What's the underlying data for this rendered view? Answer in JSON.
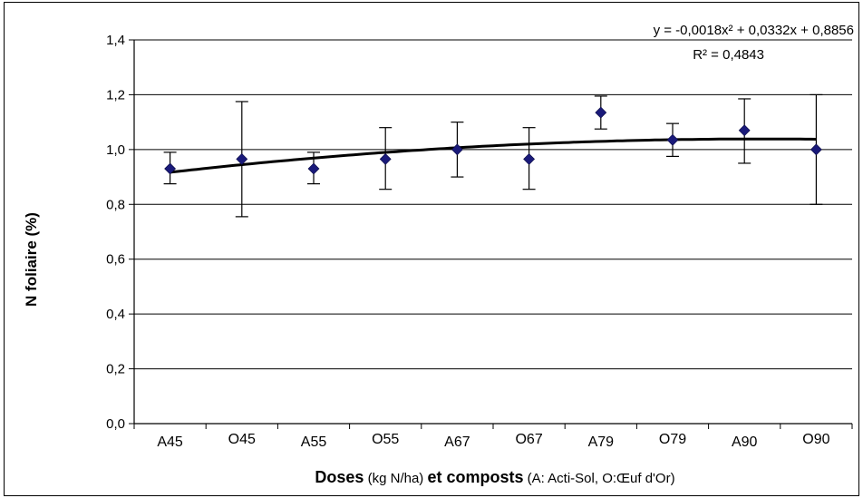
{
  "chart_data": {
    "type": "scatter",
    "categories": [
      "A45",
      "O45",
      "A55",
      "O55",
      "A67",
      "O67",
      "A79",
      "O79",
      "A90",
      "O90"
    ],
    "values": [
      0.93,
      0.965,
      0.93,
      0.965,
      1.0,
      0.965,
      1.135,
      1.035,
      1.07,
      1.0
    ],
    "error_low": [
      0.875,
      0.755,
      0.875,
      0.855,
      0.9,
      0.855,
      1.075,
      0.975,
      0.95,
      0.8
    ],
    "error_high": [
      0.99,
      1.175,
      0.99,
      1.08,
      1.1,
      1.08,
      1.195,
      1.095,
      1.185,
      1.2
    ],
    "ylim": [
      0,
      1.4
    ],
    "yticks": [
      "0,0",
      "0,2",
      "0,4",
      "0,6",
      "0,8",
      "1,0",
      "1,2",
      "1,4"
    ],
    "ylabel": "N foliaire (%)",
    "xlabel": {
      "part1": "Doses",
      "part2": " (kg N/ha) ",
      "part3": "et composts",
      "part4": " (A: Acti-Sol, O:Œuf d'Or)"
    },
    "trendline": {
      "type": "polynomial",
      "coefficients": [
        -0.0018,
        0.0332,
        0.8856
      ],
      "equation_label": "y = -0,0018x² + 0,0332x + 0,8856",
      "r2_label": "R² = 0,4843"
    },
    "grid": true,
    "legend": "none",
    "marker_color": "#1a1a7a",
    "line_color": "#000000"
  }
}
